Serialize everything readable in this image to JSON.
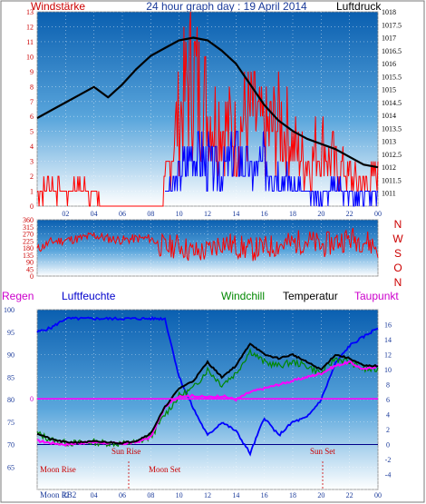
{
  "header": {
    "left": "Windstärke",
    "center": "24 hour graph day : 19 April 2014",
    "right": "Luftdruck"
  },
  "legend": {
    "regen": "Regen",
    "luftfeuchte": "Luftfeuchte",
    "windchill": "Windchill",
    "temperatur": "Temperatur",
    "taupunkt": "Taupunkt"
  },
  "annotations": {
    "sun_rise": "Sun Rise",
    "sun_set": "Sun Set",
    "moon_rise": "Moon Rise",
    "moon_set": "Moon Set",
    "moon_label": "Moon RB2"
  },
  "colors": {
    "wind": "#ff0000",
    "gust_blue": "#0000ff",
    "pressure": "#000000",
    "humidity": "#0000ff",
    "windchill": "#008800",
    "temperature": "#000000",
    "dewpoint": "#ff00ff",
    "accent_red": "#cc0000",
    "panel_top": "#0a5fb0",
    "panel_bottom": "#ffffff"
  },
  "chart_data": [
    {
      "type": "line",
      "ylim_left": [
        0,
        13
      ],
      "yticks_left": [
        "0",
        "1",
        "2",
        "3",
        "4",
        "5",
        "6",
        "7",
        "8",
        "9",
        "10",
        "11",
        "12",
        "13"
      ],
      "ylim_right": [
        1010.5,
        1018
      ],
      "yticks_right": [
        "1011",
        "1011.5",
        "1012",
        "1012.5",
        "1013",
        "1013.5",
        "1014",
        "1014.5",
        "1015",
        "1015.5",
        "1016",
        "1016.5",
        "1017",
        "1017.5",
        "1018"
      ],
      "xticks": [
        "02",
        "04",
        "06",
        "08",
        "10",
        "12",
        "14",
        "16",
        "18",
        "20",
        "22",
        "00"
      ],
      "xlim": [
        0,
        24
      ],
      "series": [
        {
          "x": [
            0,
            1,
            2,
            3,
            4,
            5,
            6,
            7,
            8,
            9,
            10,
            11,
            12,
            13,
            14,
            15,
            16,
            17,
            18,
            19,
            20,
            21,
            22,
            23,
            24
          ],
          "y": [
            1013.9,
            1014.2,
            1014.5,
            1014.8,
            1015.1,
            1014.7,
            1015.2,
            1015.8,
            1016.3,
            1016.6,
            1016.9,
            1017.0,
            1016.9,
            1016.5,
            1016.0,
            1015.2,
            1014.4,
            1013.8,
            1013.4,
            1013.1,
            1012.9,
            1012.7,
            1012.4,
            1012.1,
            1012.0
          ]
        },
        {
          "x": [
            0,
            1,
            2,
            3,
            4,
            5,
            6,
            7,
            8,
            9,
            10,
            11,
            12,
            13,
            14,
            15,
            16,
            17,
            18,
            19,
            20,
            21,
            22,
            23,
            24
          ],
          "y": [
            1,
            2,
            1,
            2,
            1,
            0,
            0,
            0,
            0,
            2,
            9,
            13,
            9,
            8,
            7,
            9,
            7,
            8,
            6,
            4,
            6,
            4,
            3,
            2,
            3
          ]
        },
        {
          "x": [
            9,
            10,
            11,
            12,
            13,
            14,
            15,
            16,
            17,
            18,
            19,
            20,
            21,
            22,
            23,
            24
          ],
          "y": [
            1,
            3,
            5,
            4,
            3,
            5,
            3,
            4,
            3,
            2,
            1,
            1,
            2,
            1,
            1,
            1
          ]
        }
      ]
    },
    {
      "type": "line",
      "ylim_left": [
        0,
        360
      ],
      "yticks_left": [
        "0",
        "45",
        "90",
        "135",
        "180",
        "225",
        "270",
        "315",
        "360"
      ],
      "right_labels": [
        "N",
        "W",
        "S",
        "O",
        "N"
      ],
      "xlim": [
        0,
        24
      ],
      "series": [
        {
          "x": [
            0,
            1,
            2,
            3,
            4,
            5,
            6,
            7,
            8,
            9,
            10,
            11,
            12,
            13,
            14,
            15,
            16,
            17,
            18,
            19,
            20,
            21,
            22,
            23,
            24
          ],
          "y": [
            170,
            220,
            230,
            240,
            260,
            240,
            230,
            240,
            240,
            180,
            200,
            150,
            160,
            220,
            190,
            170,
            180,
            200,
            210,
            230,
            190,
            220,
            240,
            230,
            180
          ]
        }
      ]
    },
    {
      "type": "line",
      "ylim_left": [
        60,
        100
      ],
      "yticks_left": [
        "65",
        "70",
        "75",
        "80",
        "85",
        "90",
        "95",
        "100"
      ],
      "ylim_right": [
        -6,
        18
      ],
      "yticks_right": [
        "-4",
        "-2",
        "0",
        "2",
        "4",
        "6",
        "8",
        "10",
        "12",
        "14",
        "16"
      ],
      "regen_axis_label": "0",
      "xticks": [
        "02",
        "04",
        "06",
        "08",
        "10",
        "12",
        "14",
        "16",
        "18",
        "20",
        "22",
        "00"
      ],
      "xlim": [
        0,
        24
      ],
      "series": [
        {
          "x": [
            0,
            1,
            2,
            3,
            4,
            5,
            6,
            7,
            8,
            9,
            10,
            11,
            12,
            13,
            14,
            15,
            16,
            17,
            18,
            19,
            20,
            21,
            22,
            23,
            24
          ],
          "y": [
            95,
            96,
            98,
            98,
            98,
            98,
            98,
            98,
            98,
            98,
            85,
            78,
            72,
            75,
            73,
            68,
            76,
            72,
            75,
            76,
            80,
            88,
            92,
            94,
            96
          ]
        },
        {
          "x": [
            0,
            1,
            2,
            3,
            4,
            5,
            6,
            7,
            8,
            9,
            10,
            11,
            12,
            13,
            14,
            15,
            16,
            17,
            18,
            19,
            20,
            21,
            22,
            23,
            24
          ],
          "y": [
            1.5,
            0.7,
            0.3,
            0.3,
            0.4,
            0.3,
            0.2,
            0.5,
            1.5,
            5.0,
            7.5,
            8.5,
            11.0,
            9.0,
            10.5,
            13.5,
            12.0,
            11.5,
            12.0,
            11.0,
            10.0,
            12.0,
            11.5,
            10.5,
            10.5
          ]
        },
        {
          "x": [
            0,
            1,
            2,
            3,
            4,
            5,
            6,
            7,
            8,
            9,
            10,
            11,
            12,
            13,
            14,
            15,
            16,
            17,
            18,
            19,
            20,
            21,
            22,
            23,
            24
          ],
          "y": [
            1.5,
            0.6,
            0.2,
            0.2,
            0.3,
            0.2,
            0.1,
            0.3,
            1.0,
            4.0,
            6.5,
            7.5,
            10.0,
            8.0,
            9.5,
            12.5,
            11.0,
            10.5,
            11.0,
            10.5,
            9.5,
            11.5,
            11.0,
            10.0,
            10.0
          ]
        },
        {
          "x": [
            0,
            1,
            2,
            3,
            4,
            5,
            6,
            7,
            8,
            9,
            10,
            11,
            12,
            13,
            14,
            15,
            16,
            17,
            18,
            19,
            20,
            21,
            22,
            23,
            24
          ],
          "y": [
            0.5,
            0.2,
            0.0,
            0.2,
            0.3,
            0.2,
            0.1,
            0.3,
            1.0,
            5.0,
            6.5,
            6.5,
            6.3,
            6.5,
            6.0,
            7.0,
            7.5,
            8.0,
            8.5,
            9.0,
            9.5,
            10.5,
            11.0,
            10.0,
            10.5
          ]
        },
        {
          "x": [
            0,
            24
          ],
          "y": [
            6.1,
            6.1
          ]
        }
      ]
    }
  ]
}
